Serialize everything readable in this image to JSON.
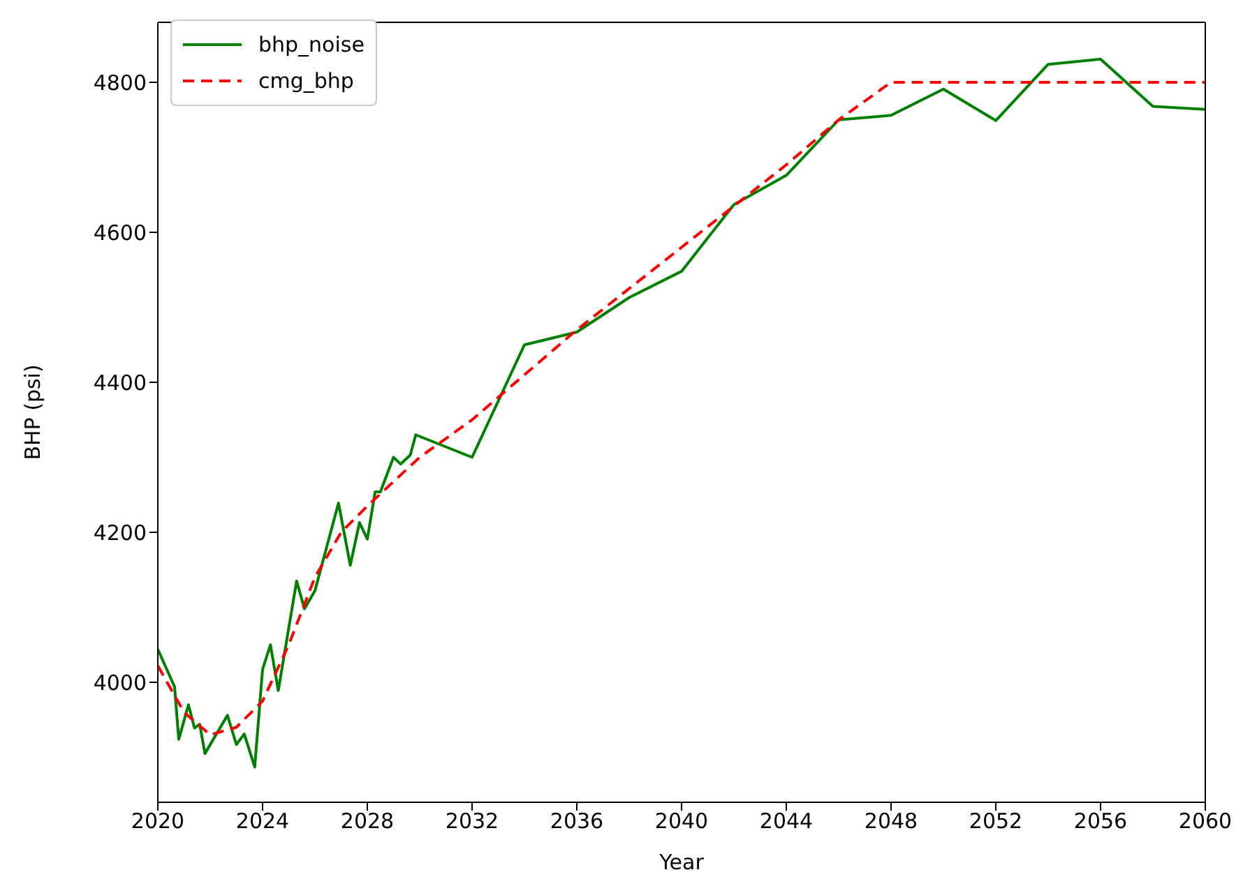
{
  "chart_data": {
    "type": "line",
    "xlabel": "Year",
    "ylabel": "BHP (psi)",
    "xlim": [
      2020,
      2060
    ],
    "xticks": [
      2020,
      2024,
      2028,
      2032,
      2036,
      2040,
      2044,
      2048,
      2052,
      2056,
      2060
    ],
    "ylim": [
      3840,
      4880
    ],
    "yticks": [
      4000,
      4200,
      4400,
      4600,
      4800
    ],
    "grid": false,
    "legend": "top left",
    "marker": "none",
    "series": [
      {
        "name": "bhp_noise",
        "color": "#008000",
        "line_style": "solid",
        "x": [
          2020,
          2020.64,
          2020.8,
          2021.17,
          2021.4,
          2021.6,
          2021.8,
          2022.66,
          2023,
          2023.3,
          2023.7,
          2024,
          2024.3,
          2024.6,
          2025.3,
          2025.6,
          2026,
          2026.9,
          2027.35,
          2027.7,
          2028,
          2028.3,
          2028.5,
          2029,
          2029.27,
          2029.64,
          2029.85,
          2032,
          2034,
          2036,
          2038,
          2040,
          2042,
          2044,
          2046,
          2048,
          2050,
          2052,
          2054,
          2056,
          2058,
          2060
        ],
        "values": [
          4044,
          3994,
          3924,
          3970,
          3939,
          3944,
          3905,
          3956,
          3917,
          3931,
          3887,
          4017,
          4050,
          3989,
          4135,
          4098,
          4122,
          4239,
          4156,
          4213,
          4191,
          4254,
          4254,
          4300,
          4291,
          4303,
          4330,
          4300,
          4450,
          4467,
          4513,
          4548,
          4637,
          4676,
          4750,
          4756,
          4791,
          4749,
          4824,
          4831,
          4768,
          4764
        ]
      },
      {
        "name": "cmg_bhp",
        "color": "#ff0000",
        "line_style": "dashed",
        "x": [
          2020,
          2021,
          2022,
          2023,
          2024,
          2025,
          2026,
          2027,
          2028,
          2030,
          2032,
          2034,
          2036,
          2040,
          2044,
          2046,
          2048,
          2060
        ],
        "values": [
          4022,
          3960,
          3930,
          3940,
          3975,
          4050,
          4140,
          4200,
          4235,
          4300,
          4350,
          4410,
          4470,
          4580,
          4690,
          4750,
          4800,
          4800
        ]
      }
    ]
  }
}
